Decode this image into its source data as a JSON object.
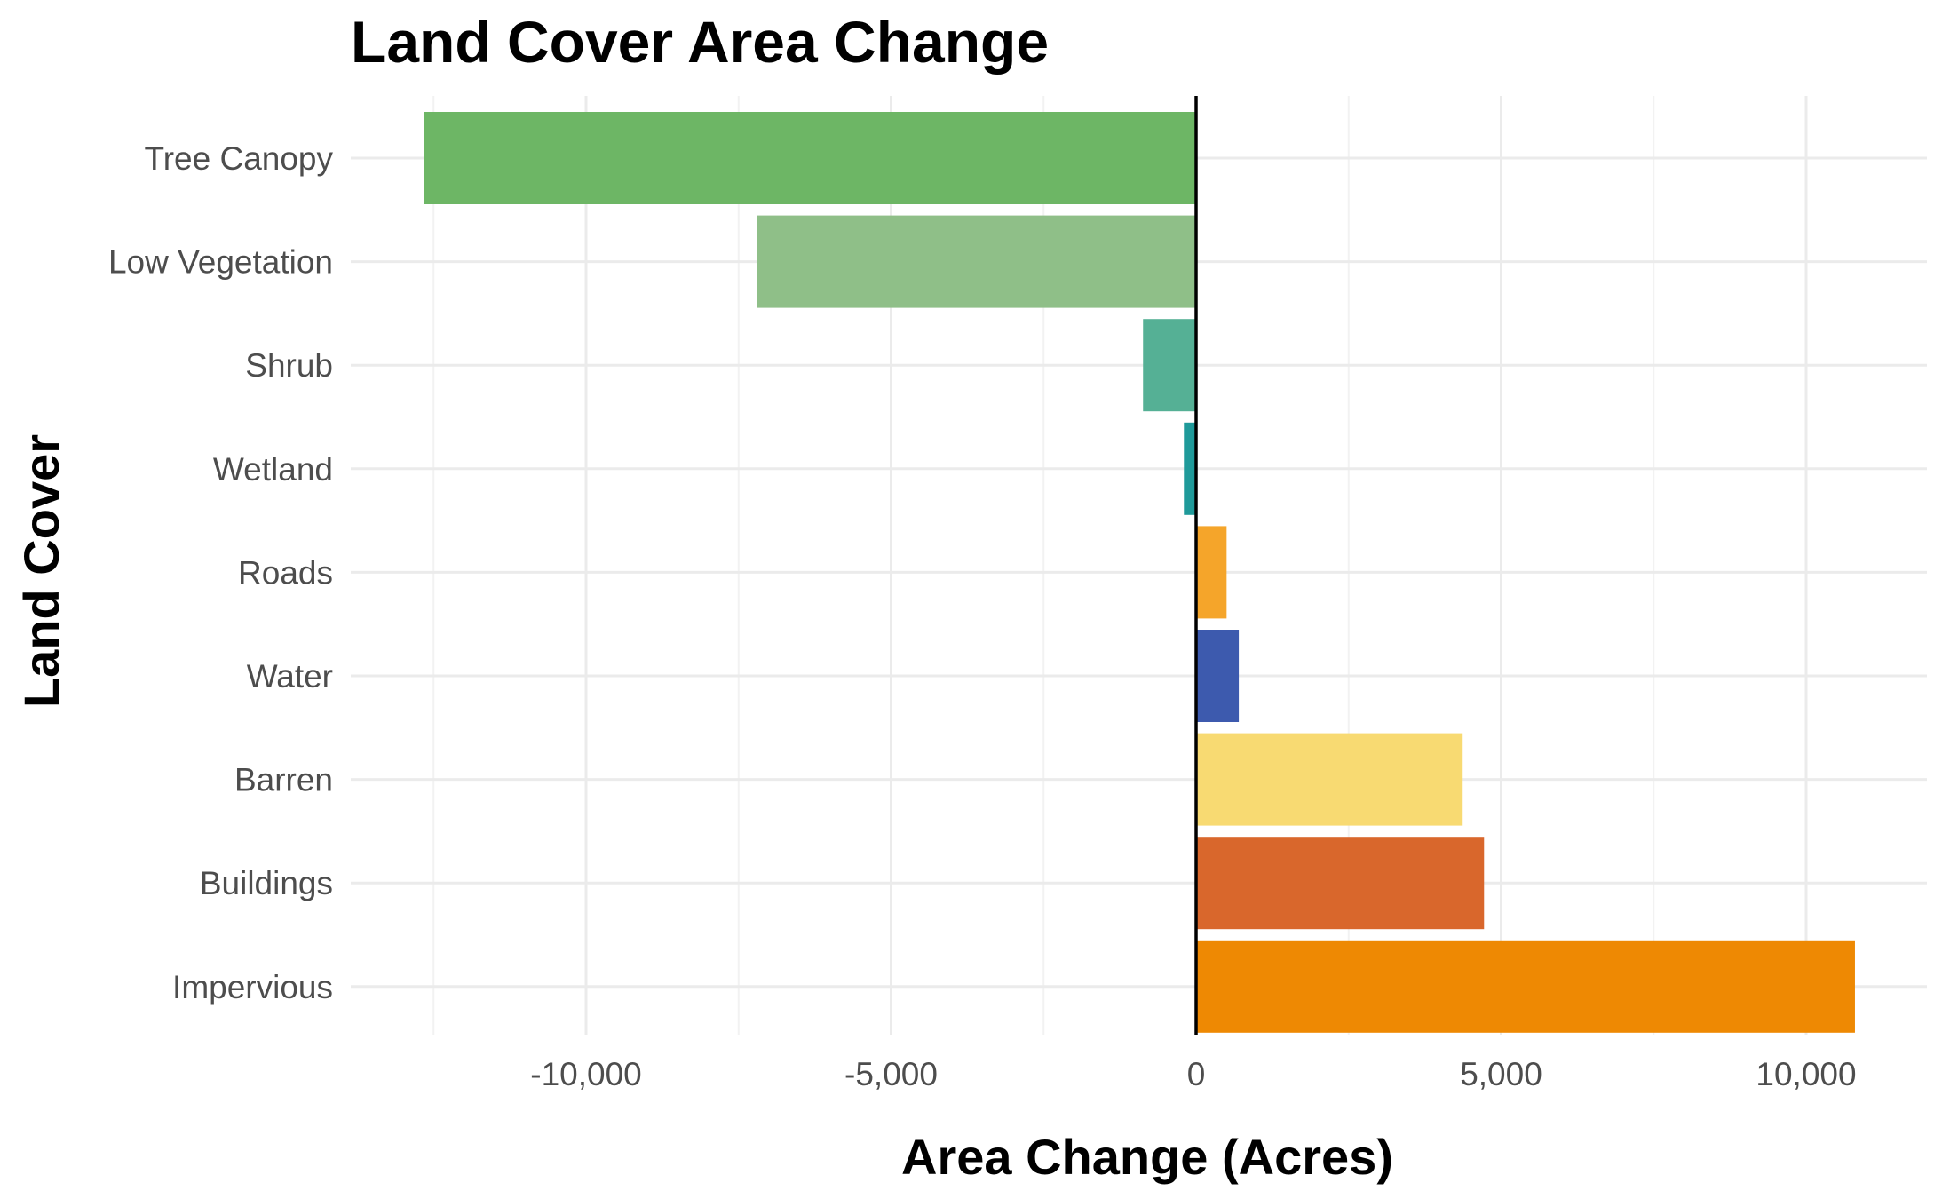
{
  "chart_data": {
    "type": "bar",
    "orientation": "horizontal",
    "title": "Land Cover Area Change",
    "xlabel": "Area Change (Acres)",
    "ylabel": "Land Cover",
    "xlim": [
      -14000,
      12500
    ],
    "x_ticks": [
      -10000,
      -5000,
      0,
      5000,
      10000
    ],
    "x_tick_labels": [
      "-10,000",
      "-5,000",
      "0",
      "5,000",
      "10,000"
    ],
    "grid": true,
    "legend": "none",
    "categories": [
      "Tree Canopy",
      "Low Vegetation",
      "Shrub",
      "Wetland",
      "Roads",
      "Water",
      "Barren",
      "Buildings",
      "Impervious"
    ],
    "values": [
      -12650,
      -7200,
      -870,
      -200,
      500,
      700,
      4370,
      4720,
      10800
    ],
    "colors": [
      "#6db665",
      "#8fbf88",
      "#55b095",
      "#1f9a9a",
      "#f5a52a",
      "#3d5aae",
      "#f8da72",
      "#d9672c",
      "#ee8903"
    ]
  }
}
